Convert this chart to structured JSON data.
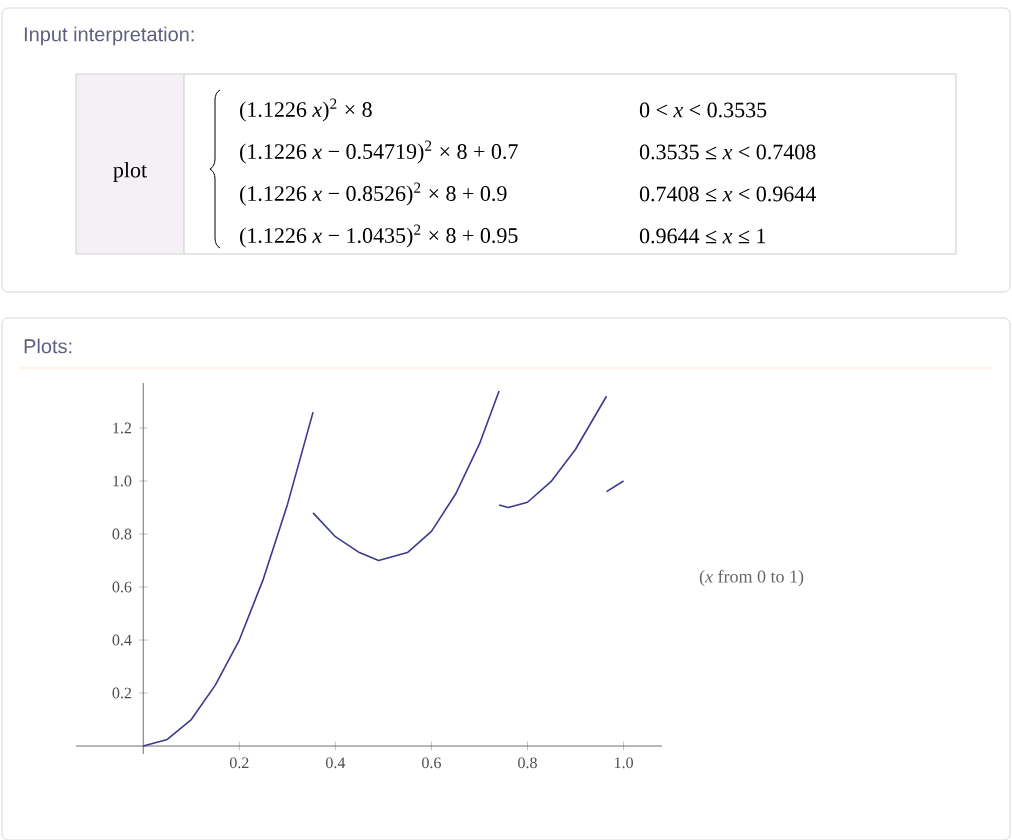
{
  "chart_data": {
    "type": "line",
    "annotations": [
      "Input interpretation:",
      "plot",
      "(1.1226 *x*)$^{2}$ × 8",
      "0 < *x* < 0.3535",
      "(1.1226 *x* − 0.54719)$^{2}$ × 8 + 0.7",
      "0.3535 ≤ *x* < 0.7408",
      "(1.1226 *x* − 0.8526)$^{2}$ × 8 + 0.9",
      "0.7408 ≤ *x* < 0.9644",
      "(1.1226 *x* − 1.0435)$^{2}$ × 8 + 0.95",
      "0.9644 ≤ *x* ≤ 1",
      "Plots:",
      "(*x* from 0 to 1)"
    ],
    "series": [
      {
        "color": "#3b3a8f",
        "x": [
          0,
          0.05,
          0.1,
          0.15,
          0.2,
          0.25,
          0.3,
          0.3535
        ],
        "values": [
          0,
          0.025,
          0.1,
          0.23,
          0.4,
          0.63,
          0.91,
          1.26
        ]
      },
      {
        "color": "#3b3a8f",
        "x": [
          0.3535,
          0.4,
          0.45,
          0.49,
          0.55,
          0.6,
          0.65,
          0.7,
          0.7408
        ],
        "values": [
          0.88,
          0.79,
          0.73,
          0.7,
          0.73,
          0.81,
          0.95,
          1.14,
          1.34
        ]
      },
      {
        "color": "#3b3a8f",
        "x": [
          0.7408,
          0.76,
          0.8,
          0.85,
          0.9,
          0.9644
        ],
        "values": [
          0.91,
          0.9,
          0.92,
          1.0,
          1.12,
          1.32
        ]
      },
      {
        "color": "#3b3a8f",
        "x": [
          0.9644,
          1.0
        ],
        "values": [
          0.96,
          1.0
        ]
      }
    ],
    "xlim": [
      -0.14,
      1.08
    ],
    "ylim": [
      -0.03,
      1.37
    ],
    "xticks": [
      0.2,
      0.4,
      0.6,
      0.8,
      {
        "value": 1,
        "label": "1.0"
      }
    ],
    "yticks": [
      0.2,
      0.4,
      0.6,
      0.8,
      {
        "value": 1,
        "label": "1.0"
      },
      1.2
    ],
    "grid": false,
    "marker": "none",
    "line_style": "solid"
  }
}
